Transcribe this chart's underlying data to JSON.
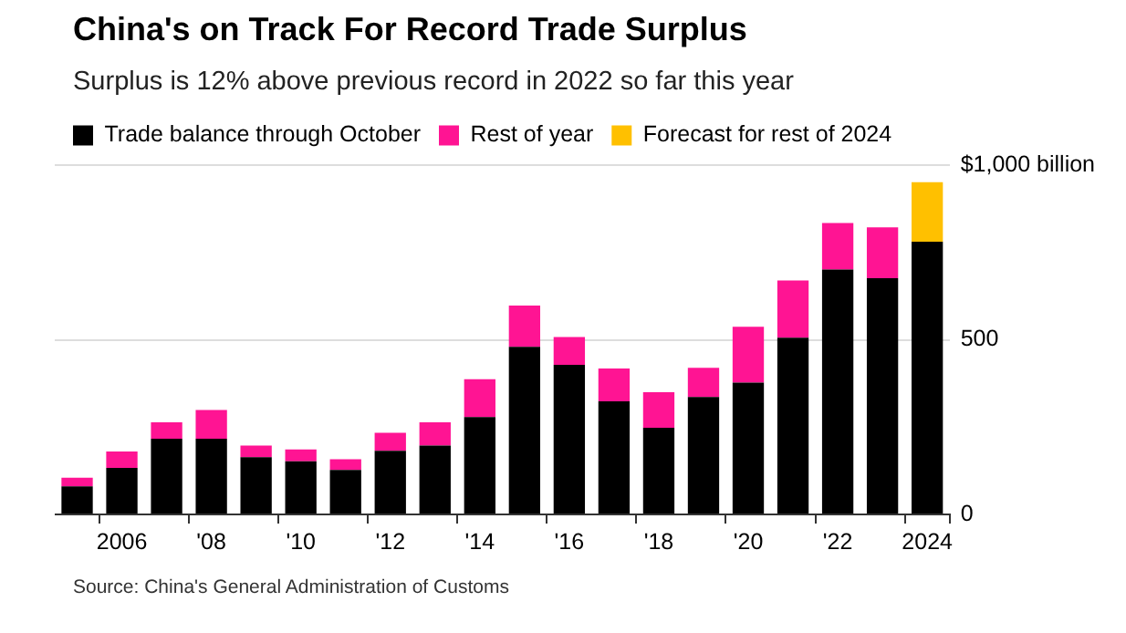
{
  "chart_data": {
    "type": "bar",
    "title": "China's on Track For Record Trade Surplus",
    "subtitle": "Surplus is 12% above previous record in 2022 so far this year",
    "categories": [
      null,
      "2006",
      null,
      "'08",
      null,
      "'10",
      null,
      "'12",
      null,
      "'14",
      null,
      "'16",
      null,
      "'18",
      null,
      "'20",
      null,
      "'22",
      null,
      "2024"
    ],
    "series": [
      {
        "name": "Trade balance through October",
        "color": "#000000",
        "values": [
          80,
          133,
          217,
          217,
          164,
          152,
          127,
          182,
          197,
          279,
          480,
          428,
          324,
          248,
          336,
          377,
          506,
          701,
          676,
          781
        ]
      },
      {
        "name": "Rest of year",
        "color": "#ff1493",
        "values": [
          25,
          47,
          47,
          82,
          33,
          34,
          31,
          52,
          67,
          108,
          118,
          80,
          94,
          102,
          84,
          160,
          164,
          133,
          146,
          null
        ]
      },
      {
        "name": "Forecast for rest of 2024",
        "color": "#ffc000",
        "values": [
          null,
          null,
          null,
          null,
          null,
          null,
          null,
          null,
          null,
          null,
          null,
          null,
          null,
          null,
          null,
          null,
          null,
          null,
          null,
          170
        ]
      }
    ],
    "stacked": true,
    "ylim": [
      0,
      1000
    ],
    "yticks": [
      0,
      500,
      {
        "value": 1000,
        "label": "$1,000 billion"
      }
    ],
    "grid": "y",
    "legend": "top left",
    "annotations": [
      "Source: China's General Administration of Customs"
    ]
  }
}
